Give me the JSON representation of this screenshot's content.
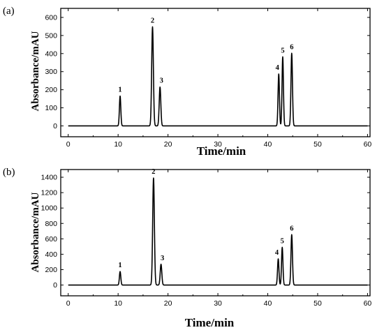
{
  "chart_data": [
    {
      "type": "line",
      "panel_label": "(a)",
      "xlabel": "Time/min",
      "ylabel": "Absorbance/mAU",
      "xlim": [
        -1.5,
        60.5
      ],
      "ylim": [
        -60,
        650
      ],
      "xticks": [
        "0",
        "10",
        "20",
        "30",
        "40",
        "50",
        "60"
      ],
      "yticks": [
        "0",
        "100",
        "200",
        "300",
        "400",
        "500",
        "600"
      ],
      "baseline": 0,
      "peaks": [
        {
          "label": "1",
          "x": 10.4,
          "y": 165,
          "width": 0.14
        },
        {
          "label": "2",
          "x": 16.9,
          "y": 548,
          "width": 0.17
        },
        {
          "label": "3",
          "x": 18.4,
          "y": 215,
          "width": 0.16
        },
        {
          "label": "4",
          "x": 42.2,
          "y": 287,
          "width": 0.14
        },
        {
          "label": "5",
          "x": 43.0,
          "y": 382,
          "width": 0.14
        },
        {
          "label": "6",
          "x": 44.8,
          "y": 402,
          "width": 0.15
        }
      ]
    },
    {
      "type": "line",
      "panel_label": "(b)",
      "xlabel": "Time/min",
      "ylabel": "Absorbance/mAU",
      "xlim": [
        -1.5,
        60.5
      ],
      "ylim": [
        -140,
        1500
      ],
      "xticks": [
        "0",
        "10",
        "20",
        "30",
        "40",
        "50",
        "60"
      ],
      "yticks": [
        "0",
        "200",
        "400",
        "600",
        "800",
        "1000",
        "1200",
        "1400"
      ],
      "baseline": 0,
      "peaks": [
        {
          "label": "1",
          "x": 10.4,
          "y": 175,
          "width": 0.14
        },
        {
          "label": "2",
          "x": 17.1,
          "y": 1390,
          "width": 0.17
        },
        {
          "label": "3",
          "x": 18.6,
          "y": 270,
          "width": 0.16
        },
        {
          "label": "4",
          "x": 42.1,
          "y": 340,
          "width": 0.14
        },
        {
          "label": "5",
          "x": 42.9,
          "y": 490,
          "width": 0.14
        },
        {
          "label": "6",
          "x": 44.8,
          "y": 655,
          "width": 0.15
        }
      ]
    }
  ]
}
